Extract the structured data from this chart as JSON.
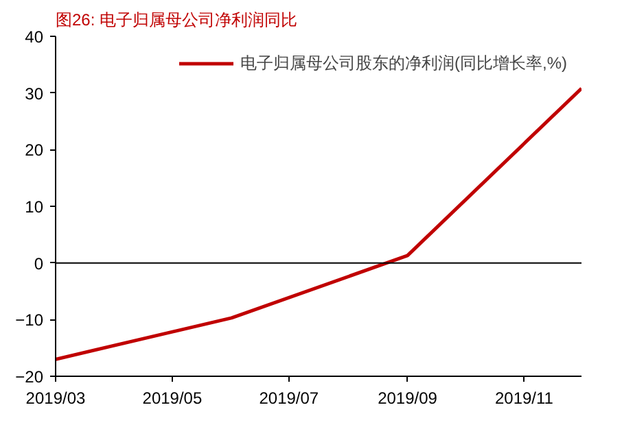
{
  "chart_data": {
    "type": "line",
    "title": "图26:   电子归属母公司净利润同比",
    "x": [
      "2019-03",
      "2019-06",
      "2019-09",
      "2019-12"
    ],
    "series": [
      {
        "name": "电子归属母公司股东的净利润(同比增长率,%)",
        "color": "#c00000",
        "values": [
          -17,
          -9.7,
          1.3,
          30.8
        ]
      }
    ],
    "xlim": [
      "2019-03",
      "2019-12"
    ],
    "xticks": [
      {
        "value": "2019-03",
        "label": "2019/03"
      },
      {
        "value": "2019-05",
        "label": "2019/05"
      },
      {
        "value": "2019-07",
        "label": "2019/07"
      },
      {
        "value": "2019-09",
        "label": "2019/09"
      },
      {
        "value": "2019-11",
        "label": "2019/11"
      }
    ],
    "ylim": [
      -20,
      40
    ],
    "yticks": [
      -20,
      -10,
      0,
      10,
      20,
      30,
      40
    ],
    "ref_lines": [
      {
        "axis": "y",
        "value": 0,
        "color": "#000000"
      }
    ],
    "legend": "top right",
    "marker": "none",
    "line_style": "solid"
  }
}
